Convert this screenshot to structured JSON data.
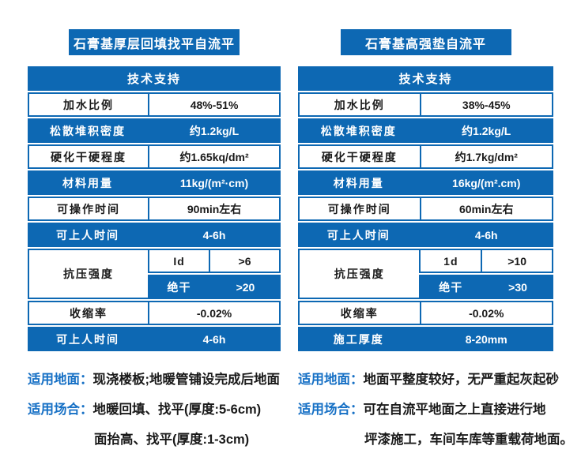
{
  "theme": {
    "table_blue": "#0d68b3",
    "note_label_blue": "#1670c5",
    "text_dark": "#1a1a1a",
    "page_bg": "#ffffff"
  },
  "products": [
    {
      "title": "石膏基厚层回填找平自流平",
      "table_header": "技术支持",
      "rows": [
        {
          "label": "加水比例",
          "value": "48%-51%"
        },
        {
          "label": "松散堆积密度",
          "value": "约1.2kg/L"
        },
        {
          "label": "硬化干硬程度",
          "value": "约1.65kq/dm²"
        },
        {
          "label": "材料用量",
          "value": "11kg/(m²·cm)"
        },
        {
          "label": "可操作时间",
          "value": "90min左右"
        },
        {
          "label": "可上人时间",
          "value": "4-6h"
        },
        {
          "label": "抗压强度",
          "top_left": "Id",
          "top_right": ">6",
          "bottom_left": "绝干",
          "bottom_right": ">20"
        },
        {
          "label": "收缩率",
          "value": "-0.02%"
        },
        {
          "label": "可上人时间",
          "value": "4-6h"
        }
      ],
      "notes": [
        {
          "label": "适用地面：",
          "line1": "现浇楼板;地暖管铺设完成后地面"
        },
        {
          "label": "适用场合：",
          "line1": "地暖回填、找平(厚度:5-6cm)",
          "line2": "面抬高、找平(厚度:1-3cm)"
        }
      ]
    },
    {
      "title": "石膏基高强垫自流平",
      "table_header": "技术支持",
      "rows": [
        {
          "label": "加水比例",
          "value": "38%-45%"
        },
        {
          "label": "松散堆积密度",
          "value": "约1.2kg/L"
        },
        {
          "label": "硬化干硬程度",
          "value": "约1.7kg/dm²"
        },
        {
          "label": "材料用量",
          "value": "16kg/(m².cm)"
        },
        {
          "label": "可操作时间",
          "value": "60min左右"
        },
        {
          "label": "可上人时间",
          "value": "4-6h"
        },
        {
          "label": "抗压强度",
          "top_left": "1d",
          "top_right": ">10",
          "bottom_left": "绝干",
          "bottom_right": ">30"
        },
        {
          "label": "收缩率",
          "value": "-0.02%"
        },
        {
          "label": "施工厚度",
          "value": "8-20mm"
        }
      ],
      "notes": [
        {
          "label": "适用地面：",
          "line1": "地面平整度较好，无严重起灰起砂"
        },
        {
          "label": "适用场合：",
          "line1": "可在自流平地面之上直接进行地",
          "line2": "坪漆施工，车间车库等重载荷地面。"
        }
      ]
    }
  ]
}
